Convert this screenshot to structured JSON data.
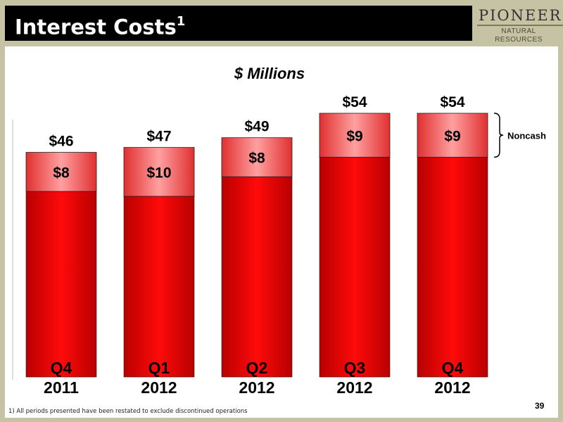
{
  "slide": {
    "title": "Interest Costs",
    "title_superscript": "1",
    "logo_main": "PIONEER",
    "logo_sub": "NATURAL RESOURCES",
    "footnote": "1)  All periods presented have been restated to exclude discontinued operations",
    "page_number": "39"
  },
  "chart_data": {
    "type": "bar",
    "stacked": true,
    "title": "$ Millions",
    "categories": [
      [
        "Q4",
        "2011"
      ],
      [
        "Q1",
        "2012"
      ],
      [
        "Q2",
        "2012"
      ],
      [
        "Q3",
        "2012"
      ],
      [
        "Q4",
        "2012"
      ]
    ],
    "totals": [
      "$46",
      "$47",
      "$49",
      "$54",
      "$54"
    ],
    "total_values": [
      46,
      47,
      49,
      54,
      54
    ],
    "series": [
      {
        "values": [
          38,
          37,
          41,
          45,
          45
        ],
        "color": "#e30000"
      },
      {
        "values": [
          8,
          10,
          8,
          9,
          9
        ],
        "labels": [
          "$8",
          "$10",
          "$8",
          "$9",
          "$9"
        ],
        "color": "#f05a5a"
      }
    ],
    "bracket_label": "Noncash",
    "ylim": [
      0,
      54
    ],
    "grid": false,
    "legend": "none"
  }
}
